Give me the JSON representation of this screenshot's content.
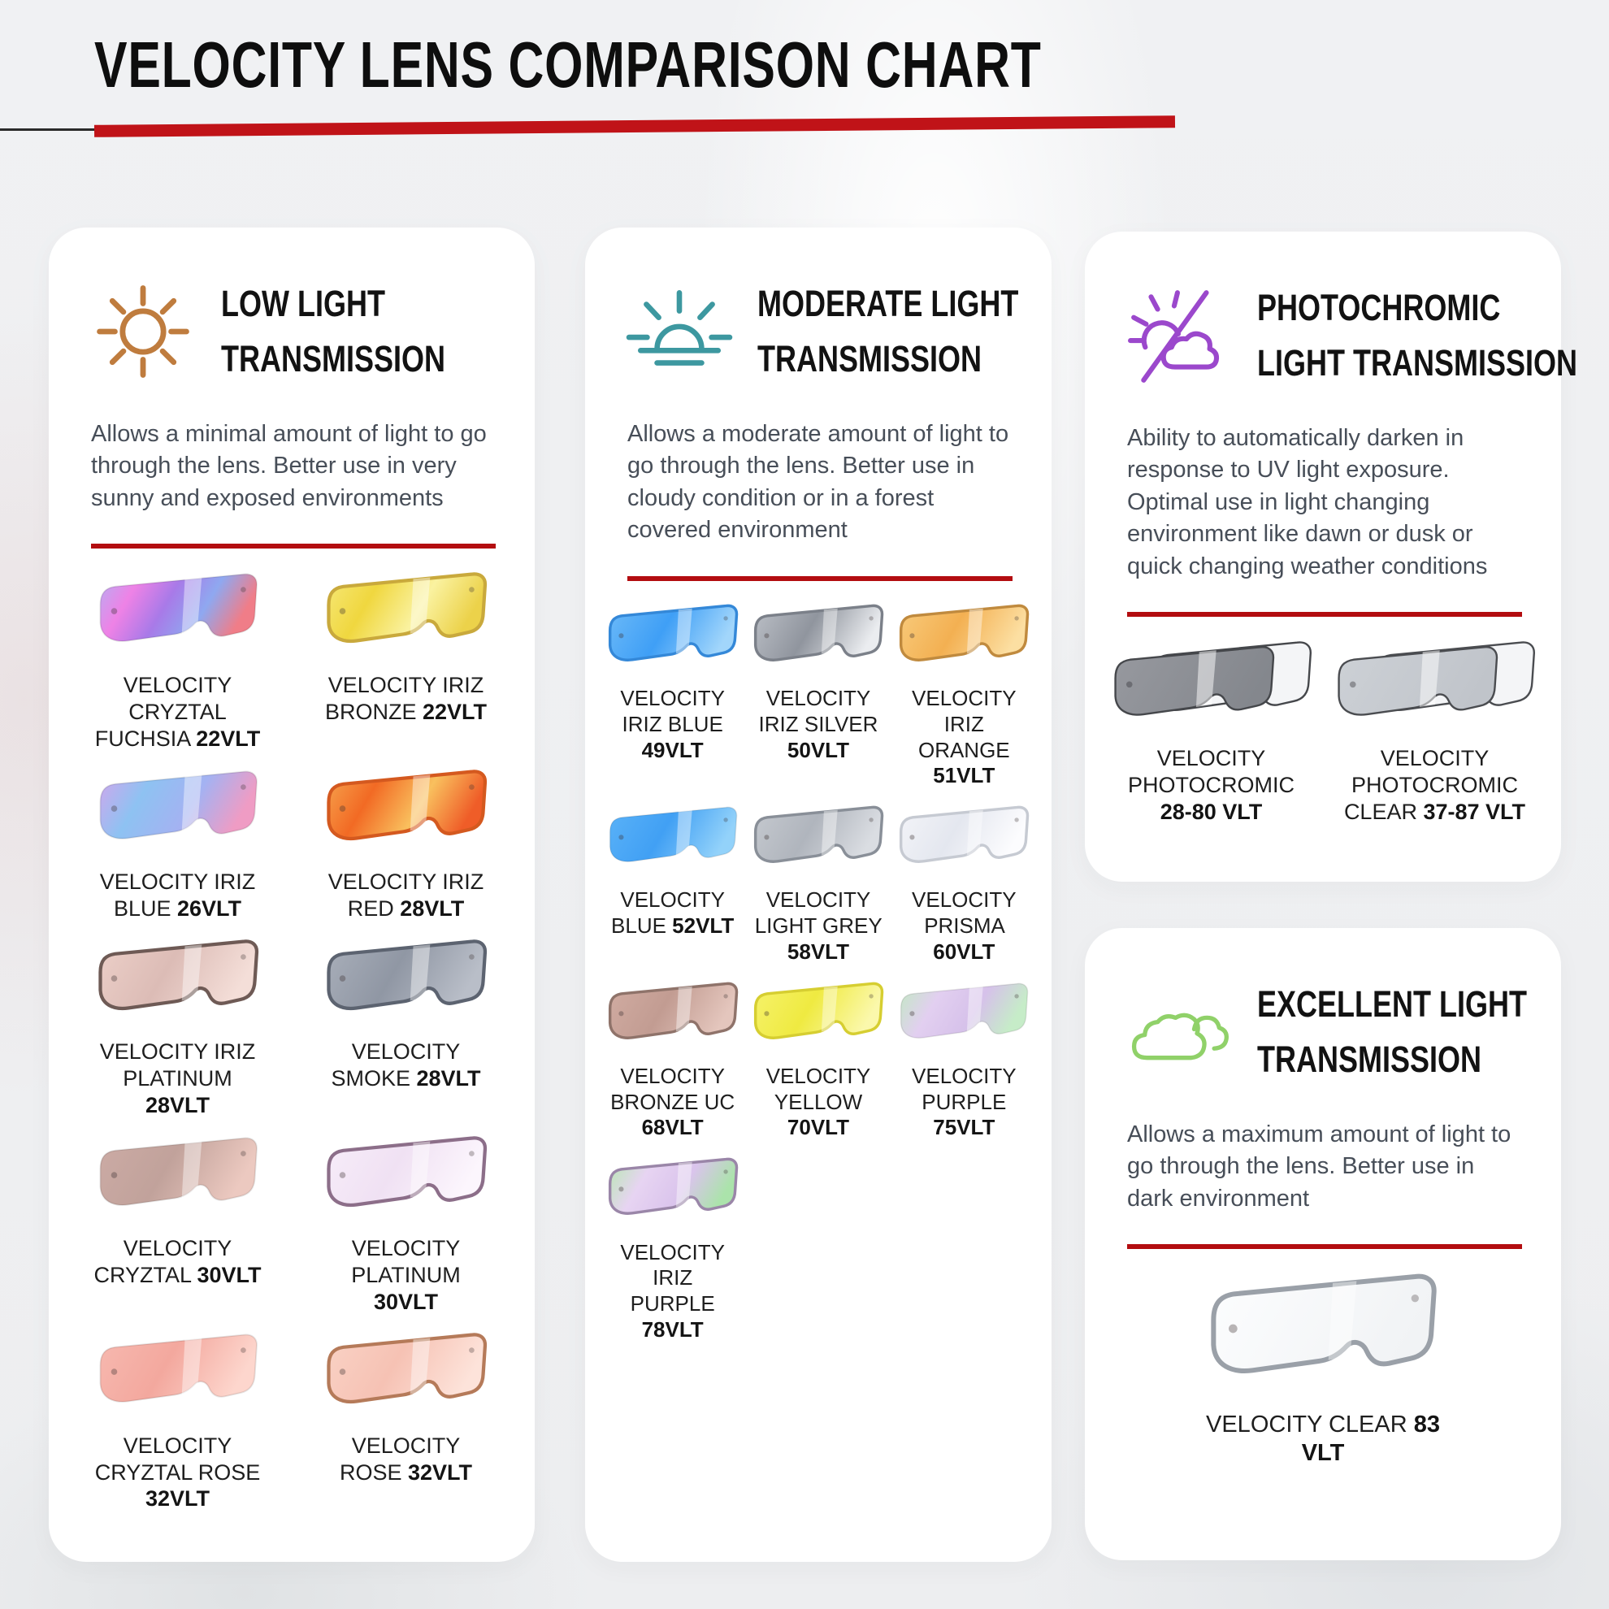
{
  "page": {
    "title": "VELOCITY LENS COMPARISON CHART",
    "accent_red": "#b30d10",
    "rule_color": "#c01318"
  },
  "cards": [
    {
      "id": "low-light",
      "icon": "sun-icon",
      "icon_color": "#bf7c3e",
      "heading_lines": [
        "LOW LIGHT",
        "TRANSMISSION"
      ],
      "description": "Allows a minimal amount of light to go through the lens. Better use in very sunny and exposed environments",
      "grid_columns": 2,
      "lenses": [
        {
          "name": "VELOCITY CRYZTAL FUCHSIA",
          "vlt": "22VLT",
          "style": "single",
          "rim": null,
          "colors": [
            "#b6aef2",
            "#ee82e6",
            "#a87ae8",
            "#8fa8f0",
            "#f07d88"
          ]
        },
        {
          "name": "VELOCITY IRIZ BRONZE",
          "vlt": "22VLT",
          "style": "single",
          "rim": "#c9a93c",
          "colors": [
            "#f6e878",
            "#f0d73f",
            "#faf2a0",
            "#ecd24a"
          ]
        },
        {
          "name": "VELOCITY IRIZ BLUE",
          "vlt": "26VLT",
          "style": "single",
          "rim": null,
          "colors": [
            "#d2a6ec",
            "#8ec2f2",
            "#a4b2f2",
            "#ef9cc4"
          ]
        },
        {
          "name": "VELOCITY IRIZ RED",
          "vlt": "28VLT",
          "style": "single",
          "rim": "#d4591f",
          "colors": [
            "#f6a44e",
            "#f26a24",
            "#f9c05e",
            "#ef5d28"
          ]
        },
        {
          "name": "VELOCITY IRIZ PLATINUM",
          "vlt": "28VLT",
          "style": "single",
          "rim": "#6e5a55",
          "colors": [
            "#eccfc8",
            "#dcbcb6",
            "#f4ded8"
          ]
        },
        {
          "name": "VELOCITY SMOKE",
          "vlt": "28VLT",
          "style": "single",
          "rim": "#5c6370",
          "colors": [
            "#a9afba",
            "#9097a4",
            "#b9bec8"
          ]
        },
        {
          "name": "VELOCITY CRYZTAL",
          "vlt": "30VLT",
          "style": "single",
          "rim": null,
          "colors": [
            "#ccaba5",
            "#c1a29b",
            "#ecc9c0"
          ]
        },
        {
          "name": "VELOCITY PLATINUM",
          "vlt": "30VLT",
          "style": "single",
          "rim": "#8c6e89",
          "colors": [
            "#f7edf9",
            "#f0e1f3",
            "#fcf6fd"
          ]
        },
        {
          "name": "VELOCITY CRYZTAL ROSE",
          "vlt": "32VLT",
          "style": "single",
          "rim": null,
          "colors": [
            "#f7b9b0",
            "#f3a89e",
            "#fdd6cd"
          ]
        },
        {
          "name": "VELOCITY ROSE",
          "vlt": "32VLT",
          "style": "single",
          "rim": "#b57a59",
          "colors": [
            "#f9d2c5",
            "#f6c2b4",
            "#fde3da"
          ]
        }
      ]
    },
    {
      "id": "moderate-light",
      "icon": "sunrise-icon",
      "icon_color": "#3d98a0",
      "heading_lines": [
        "MODERATE LIGHT",
        "TRANSMISSION"
      ],
      "description": "Allows a moderate amount of light to go through the lens. Better use in cloudy condition or in a forest covered environment",
      "grid_columns": 3,
      "lenses": [
        {
          "name": "VELOCITY IRIZ BLUE",
          "vlt": "49VLT",
          "style": "single",
          "rim": "#3488d8",
          "colors": [
            "#6cbaf8",
            "#3f9ff6",
            "#a2d6fb"
          ]
        },
        {
          "name": "VELOCITY IRIZ SILVER",
          "vlt": "50VLT",
          "style": "single",
          "rim": "#7b8089",
          "colors": [
            "#bcc0c7",
            "#90959e",
            "#ebedf0"
          ]
        },
        {
          "name": "VELOCITY IRIZ ORANGE",
          "vlt": "51VLT",
          "style": "single",
          "rim": "#c08a3e",
          "colors": [
            "#f8cb7c",
            "#f3b052",
            "#fcdfa2"
          ]
        },
        {
          "name": "VELOCITY BLUE",
          "vlt": "52VLT",
          "style": "single",
          "rim": null,
          "colors": [
            "#5ab2f8",
            "#41a0f4",
            "#93d2fa"
          ]
        },
        {
          "name": "VELOCITY LIGHT GREY",
          "vlt": "58VLT",
          "style": "single",
          "rim": "#898f98",
          "colors": [
            "#c5c9cf",
            "#b0b5bd",
            "#dadde2"
          ]
        },
        {
          "name": "VELOCITY PRISMA",
          "vlt": "60VLT",
          "style": "single",
          "rim": "#c6cad2",
          "colors": [
            "#f3f4f8",
            "#e4e7ef",
            "#fcfcfe"
          ]
        },
        {
          "name": "VELOCITY BRONZE UC",
          "vlt": "68VLT",
          "style": "single",
          "rim": "#8f736a",
          "colors": [
            "#d1aca2",
            "#c29c92",
            "#e4c6bd"
          ]
        },
        {
          "name": "VELOCITY YELLOW",
          "vlt": "70VLT",
          "style": "single",
          "rim": "#d6ce31",
          "colors": [
            "#f6f26c",
            "#efea41",
            "#fbf8ac"
          ]
        },
        {
          "name": "VELOCITY PURPLE",
          "vlt": "75VLT",
          "style": "single",
          "rim": null,
          "colors": [
            "#c2e9c3",
            "#e2cff0",
            "#d6c1ea",
            "#c6ecc8"
          ]
        },
        {
          "name": "VELOCITY IRIZ PURPLE",
          "vlt": "78VLT",
          "style": "single",
          "rim": "#9a86a8",
          "colors": [
            "#b8e9b2",
            "#e7d4f2",
            "#dac4ec",
            "#abe3ab"
          ]
        }
      ]
    },
    {
      "id": "photochromic",
      "icon": "photochromic-icon",
      "icon_color": "#9b48cc",
      "heading_lines": [
        "PHOTOCHROMIC",
        "LIGHT TRANSMISSION"
      ],
      "description": "Ability to automatically darken in response to UV light exposure. Optimal use in light changing environment like dawn or dusk or quick changing weather conditions",
      "grid_columns": 2,
      "lenses": [
        {
          "name": "VELOCITY PHOTOCROMIC",
          "vlt": "28-80 VLT",
          "style": "dual",
          "rim": "#45474b",
          "colors": [
            "#97999f",
            "#84878d"
          ]
        },
        {
          "name": "VELOCITY PHOTOCROMIC CLEAR",
          "vlt": "37-87 VLT",
          "style": "dual",
          "rim": "#4a4c50",
          "colors": [
            "#cdd1d6",
            "#c0c4ca"
          ]
        }
      ]
    },
    {
      "id": "excellent-light",
      "icon": "clouds-icon",
      "icon_color": "#90d169",
      "heading_lines": [
        "EXCELLENT LIGHT",
        "TRANSMISSION"
      ],
      "description": "Allows a maximum amount of light to go through the lens. Better use in dark environment",
      "grid_columns": 1,
      "lenses": [
        {
          "name": "VELOCITY CLEAR",
          "vlt": "83 VLT",
          "style": "single",
          "rim": "#9aa0a8",
          "colors": [
            "#fcfdfe",
            "#f1f3f5"
          ]
        }
      ]
    }
  ]
}
